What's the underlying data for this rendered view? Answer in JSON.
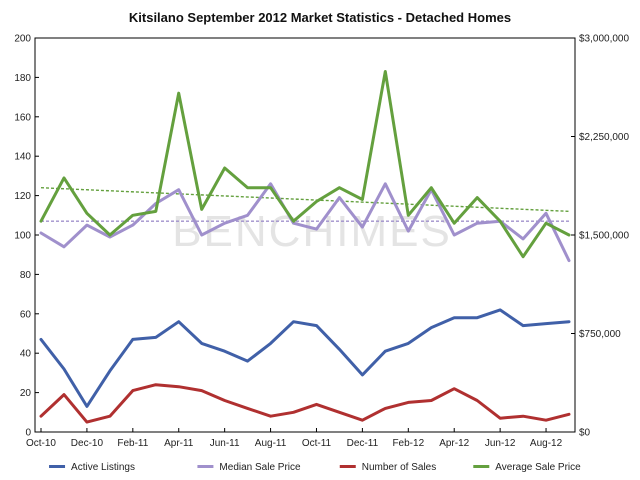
{
  "chart_data": {
    "type": "line",
    "title": "Kitsilano September 2012 Market Statistics - Detached Homes",
    "watermark": "BENCHIMES",
    "x_tick_labels": [
      "Oct-10",
      "Dec-10",
      "Feb-11",
      "Apr-11",
      "Jun-11",
      "Aug-11",
      "Oct-11",
      "Dec-11",
      "Feb-12",
      "Apr-12",
      "Jun-12",
      "Aug-12"
    ],
    "months": [
      "Oct-10",
      "Nov-10",
      "Dec-10",
      "Jan-11",
      "Feb-11",
      "Mar-11",
      "Apr-11",
      "May-11",
      "Jun-11",
      "Jul-11",
      "Aug-11",
      "Sep-11",
      "Oct-11",
      "Nov-11",
      "Dec-11",
      "Jan-12",
      "Feb-12",
      "Mar-12",
      "Apr-12",
      "May-12",
      "Jun-12",
      "Jul-12",
      "Aug-12",
      "Sep-12"
    ],
    "left_axis": {
      "min": 0,
      "max": 200,
      "ticks": [
        "0",
        "20",
        "40",
        "60",
        "80",
        "100",
        "120",
        "140",
        "160",
        "180",
        "200"
      ]
    },
    "right_axis": {
      "min": 0,
      "max": 3000000,
      "ticks": [
        "$0",
        "$750,000",
        "$1,500,000",
        "$2,250,000",
        "$3,000,000"
      ]
    },
    "series": [
      {
        "name": "Active Listings",
        "axis": "left",
        "color": "#4060a8",
        "values": [
          47,
          32,
          13,
          31,
          47,
          48,
          56,
          45,
          41,
          36,
          45,
          56,
          54,
          42,
          29,
          41,
          45,
          53,
          58,
          58,
          62,
          54,
          55,
          56
        ]
      },
      {
        "name": "Median Sale Price",
        "axis": "left",
        "color": "#a090cc",
        "values": [
          101,
          94,
          105,
          99,
          105,
          116,
          123,
          100,
          106,
          110,
          126,
          106,
          103,
          119,
          104,
          126,
          102,
          123,
          100,
          106,
          107,
          98,
          111,
          87
        ],
        "trend": [
          107,
          107
        ]
      },
      {
        "name": "Number of Sales",
        "axis": "left",
        "color": "#b03030",
        "values": [
          8,
          19,
          5,
          8,
          21,
          24,
          23,
          21,
          16,
          12,
          8,
          10,
          14,
          10,
          6,
          12,
          15,
          16,
          22,
          16,
          7,
          8,
          6,
          9
        ]
      },
      {
        "name": "Average Sale Price",
        "axis": "left",
        "color": "#64a03e",
        "values": [
          107,
          129,
          111,
          100,
          110,
          112,
          172,
          113,
          134,
          124,
          124,
          107,
          117,
          124,
          118,
          183,
          110,
          124,
          106,
          119,
          107,
          89,
          106,
          100
        ],
        "trend": [
          124,
          112
        ]
      }
    ],
    "grid": false,
    "legend": "bottom"
  }
}
